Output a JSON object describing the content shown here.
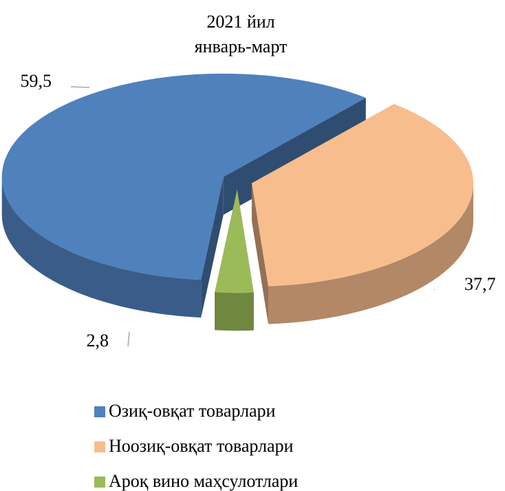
{
  "chart_data": {
    "type": "pie",
    "title": [
      "2021 йил",
      "январь-март"
    ],
    "categories": [
      "Озиқ-овқат товарлари",
      "Ноозиқ-овқат товарлари",
      "Ароқ вино маҳсулотлари"
    ],
    "values": [
      59.5,
      37.7,
      2.8
    ],
    "value_labels": [
      "59,5",
      "37,7",
      "2,8"
    ],
    "colors": [
      "#4f81bd",
      "#f7bd8d",
      "#9bbb59"
    ],
    "legend": "bottom"
  }
}
